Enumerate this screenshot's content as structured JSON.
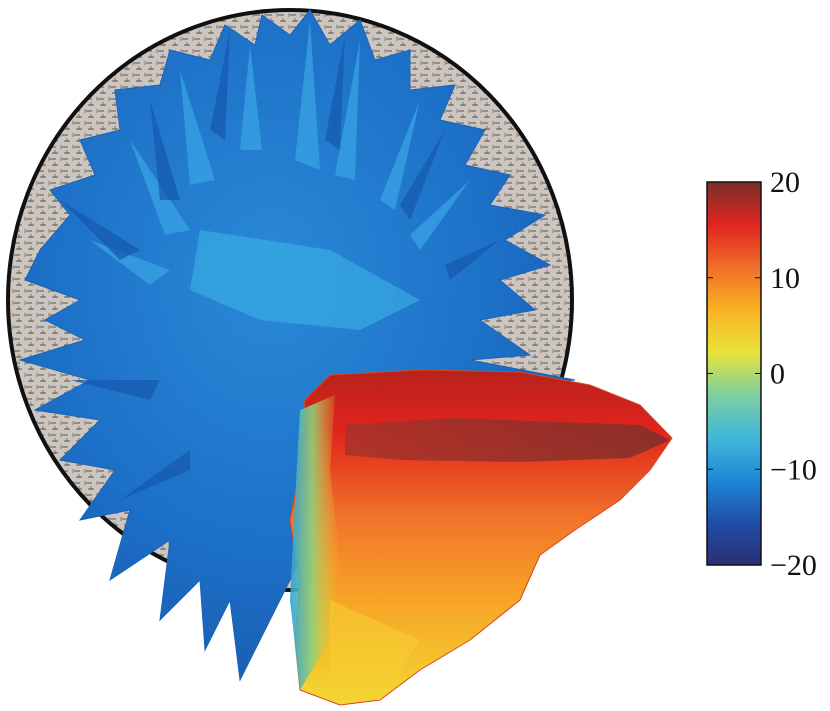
{
  "chart_data": {
    "type": "heatmap",
    "title": "",
    "colorbar": {
      "range": [
        -20,
        20
      ],
      "ticks": [
        {
          "value": 20,
          "label": "20"
        },
        {
          "value": 10,
          "label": "10"
        },
        {
          "value": 0,
          "label": "0"
        },
        {
          "value": -10,
          "label": "−10"
        },
        {
          "value": -20,
          "label": "−20"
        }
      ],
      "colormap": [
        "#2b2f74",
        "#1f4ea8",
        "#1e88d6",
        "#41b8d8",
        "#7ecfa0",
        "#e9e33a",
        "#f8b222",
        "#f06d2a",
        "#e1251f",
        "#7a2f2b"
      ]
    },
    "surface_regions": [
      {
        "name": "upper-lobe",
        "approx_value": -9
      },
      {
        "name": "lower-lobe-core",
        "approx_value": 18
      },
      {
        "name": "lower-lobe-edge",
        "approx_value": 8
      }
    ],
    "background_disc": {
      "fill": "#cfc8c2",
      "outline": "#111111"
    }
  }
}
